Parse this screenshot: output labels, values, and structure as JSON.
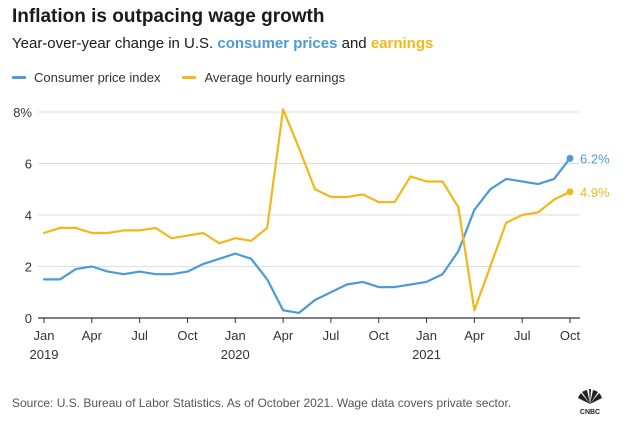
{
  "header": {
    "title": "Inflation is outpacing wage growth",
    "subtitle_prefix": "Year-over-year change in U.S. ",
    "subtitle_series1": "consumer prices",
    "subtitle_join": " and ",
    "subtitle_series2": "earnings"
  },
  "colors": {
    "cpi": "#4a9bd8",
    "earnings": "#f0b81a",
    "grid": "#dedede",
    "axis": "#333333"
  },
  "footer": {
    "source": "Source: U.S. Bureau of Labor Statistics. As of October 2021. Wage data covers private sector.",
    "logo_text": "CNBC"
  },
  "chart_data": {
    "type": "line",
    "legend_position": "top-left",
    "grid": true,
    "ylim": [
      0,
      8
    ],
    "yticks": [
      {
        "value": 0,
        "label": "0"
      },
      {
        "value": 2,
        "label": "2"
      },
      {
        "value": 4,
        "label": "4"
      },
      {
        "value": 6,
        "label": "6"
      },
      {
        "value": 8,
        "label": "8%"
      }
    ],
    "xticks": [
      {
        "date": "2019-01",
        "label": "Jan",
        "year": "2019"
      },
      {
        "date": "2019-04",
        "label": "Apr",
        "year": ""
      },
      {
        "date": "2019-07",
        "label": "Jul",
        "year": ""
      },
      {
        "date": "2019-10",
        "label": "Oct",
        "year": ""
      },
      {
        "date": "2020-01",
        "label": "Jan",
        "year": "2020"
      },
      {
        "date": "2020-04",
        "label": "Apr",
        "year": ""
      },
      {
        "date": "2020-07",
        "label": "Jul",
        "year": ""
      },
      {
        "date": "2020-10",
        "label": "Oct",
        "year": ""
      },
      {
        "date": "2021-01",
        "label": "Jan",
        "year": "2021"
      },
      {
        "date": "2021-04",
        "label": "Apr",
        "year": ""
      },
      {
        "date": "2021-07",
        "label": "Jul",
        "year": ""
      },
      {
        "date": "2021-10",
        "label": "Oct",
        "year": ""
      }
    ],
    "x": [
      "2019-01",
      "2019-02",
      "2019-03",
      "2019-04",
      "2019-05",
      "2019-06",
      "2019-07",
      "2019-08",
      "2019-09",
      "2019-10",
      "2019-11",
      "2019-12",
      "2020-01",
      "2020-02",
      "2020-03",
      "2020-04",
      "2020-05",
      "2020-06",
      "2020-07",
      "2020-08",
      "2020-09",
      "2020-10",
      "2020-11",
      "2020-12",
      "2021-01",
      "2021-02",
      "2021-03",
      "2021-04",
      "2021-05",
      "2021-06",
      "2021-07",
      "2021-08",
      "2021-09",
      "2021-10"
    ],
    "series": [
      {
        "name": "Consumer price index",
        "key": "cpi",
        "values": [
          1.5,
          1.5,
          1.9,
          2.0,
          1.8,
          1.7,
          1.8,
          1.7,
          1.7,
          1.8,
          2.1,
          2.3,
          2.5,
          2.3,
          1.5,
          0.3,
          0.2,
          0.7,
          1.0,
          1.3,
          1.4,
          1.2,
          1.2,
          1.3,
          1.4,
          1.7,
          2.6,
          4.2,
          5.0,
          5.4,
          5.3,
          5.2,
          5.4,
          6.2
        ],
        "end_label": "6.2%"
      },
      {
        "name": "Average hourly earnings",
        "key": "earnings",
        "values": [
          3.3,
          3.5,
          3.5,
          3.3,
          3.3,
          3.4,
          3.4,
          3.5,
          3.1,
          3.2,
          3.3,
          2.9,
          3.1,
          3.0,
          3.5,
          8.1,
          6.6,
          5.0,
          4.7,
          4.7,
          4.8,
          4.5,
          4.5,
          5.5,
          5.3,
          5.3,
          4.3,
          0.3,
          2.0,
          3.7,
          4.0,
          4.1,
          4.6,
          4.9
        ],
        "end_label": "4.9%"
      }
    ]
  }
}
